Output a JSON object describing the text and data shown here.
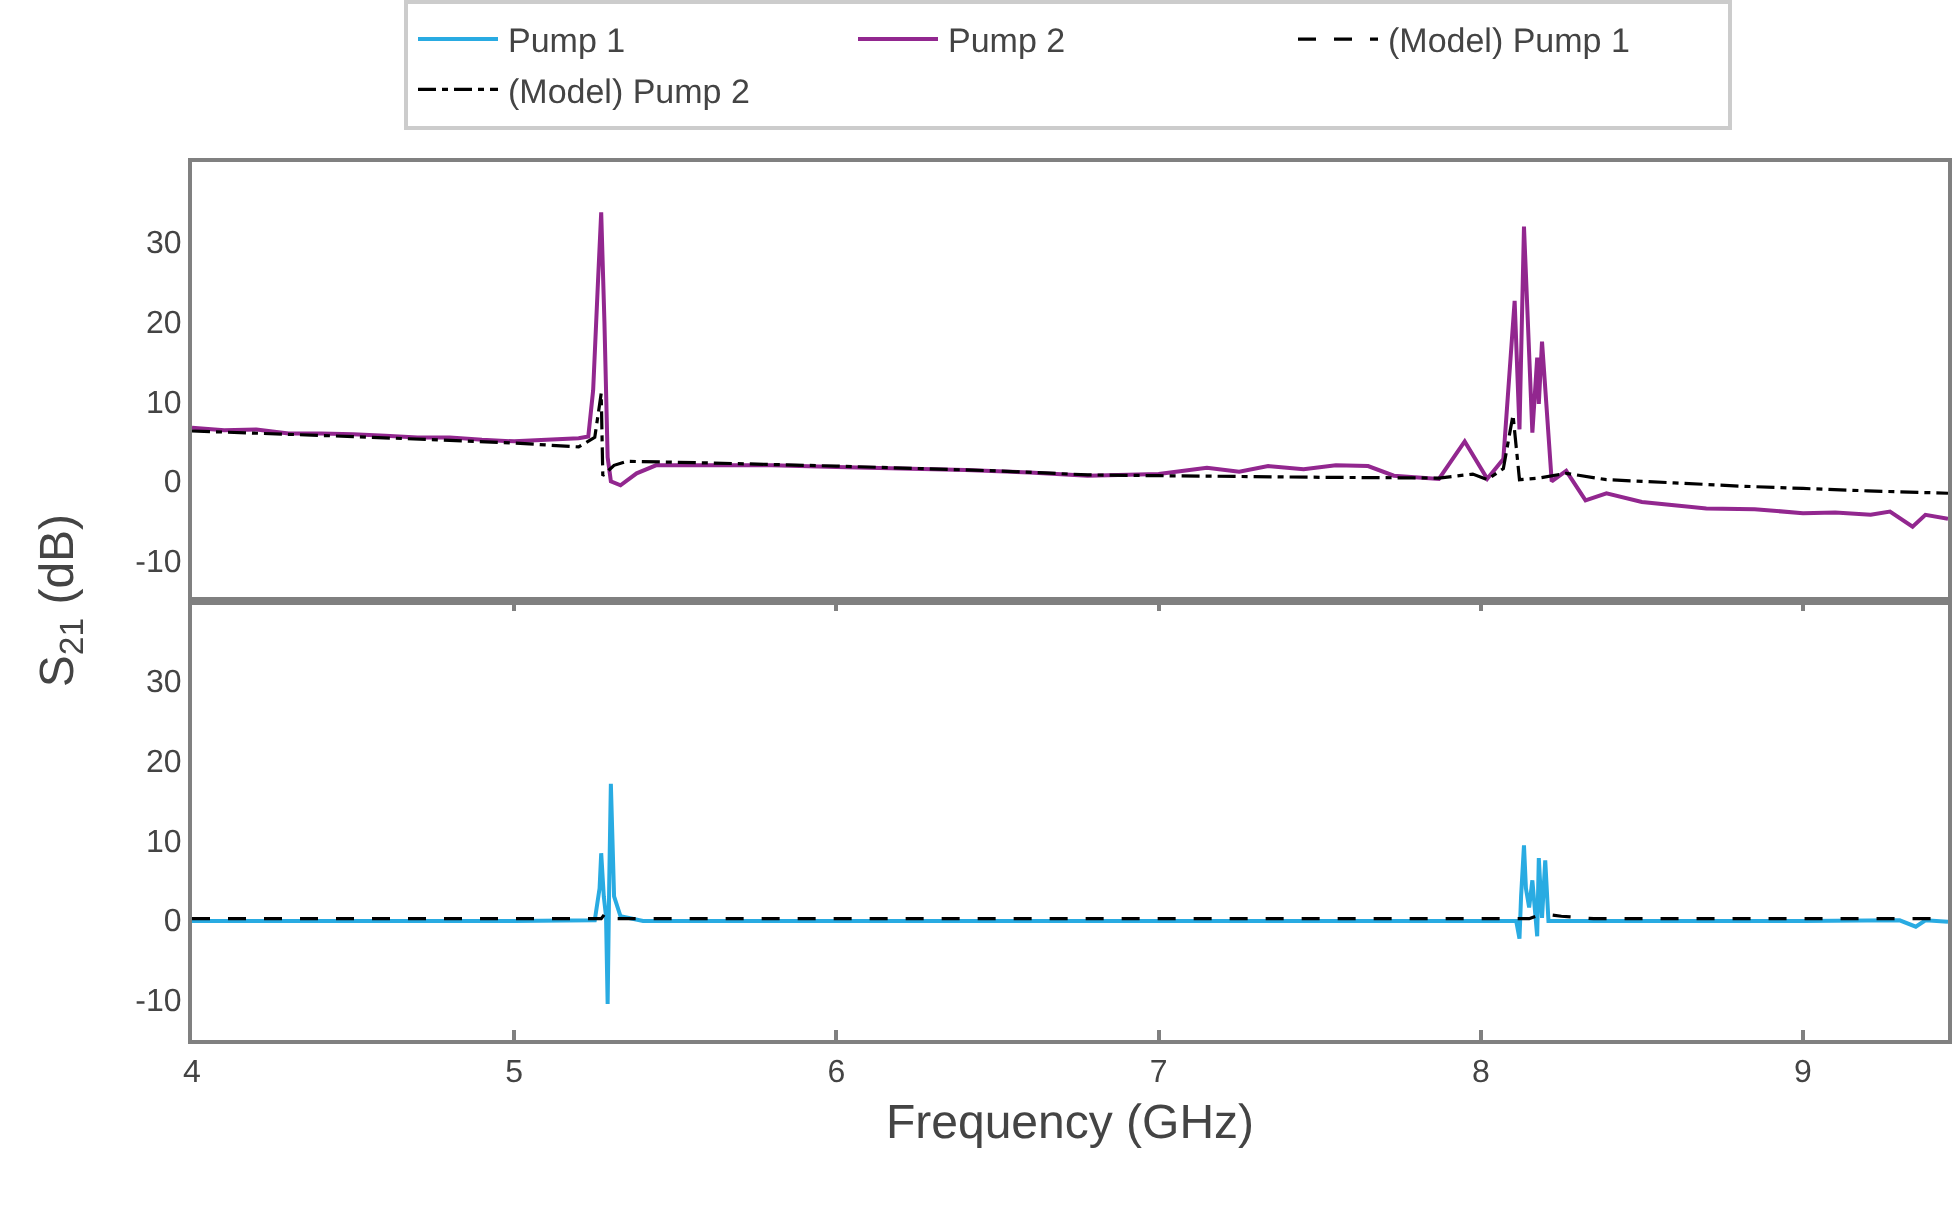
{
  "chart_data": [
    {
      "type": "line",
      "ylabel": "S$_{21}$ (dB)",
      "legend": "top",
      "tick_labels": "y",
      "marker": "none",
      "xlim": [
        4,
        9.45
      ],
      "xticks": [
        4,
        5,
        6,
        7,
        8,
        9
      ],
      "ylim": [
        -15,
        40
      ],
      "yticks": [
        -10,
        0,
        10,
        20,
        30
      ],
      "series": [
        {
          "name": "Pump 2",
          "color": "#92278f",
          "line_style": "solid",
          "x": [
            4.0,
            4.1,
            4.2,
            4.3,
            4.4,
            4.5,
            4.6,
            4.7,
            4.8,
            4.9,
            5.0,
            5.1,
            5.2,
            5.23,
            5.245,
            5.26,
            5.27,
            5.28,
            5.29,
            5.3,
            5.33,
            5.38,
            5.44,
            5.6,
            5.8,
            6.0,
            6.2,
            6.4,
            6.6,
            6.78,
            7.0,
            7.15,
            7.25,
            7.34,
            7.45,
            7.55,
            7.65,
            7.73,
            7.87,
            7.95,
            8.02,
            8.07,
            8.105,
            8.12,
            8.134,
            8.16,
            8.175,
            8.18,
            8.19,
            8.22,
            8.265,
            8.325,
            8.39,
            8.5,
            8.6,
            8.7,
            8.85,
            9.0,
            9.1,
            9.21,
            9.27,
            9.34,
            9.38,
            9.45
          ],
          "values": [
            6.7,
            6.4,
            6.5,
            6.0,
            6.0,
            5.9,
            5.7,
            5.5,
            5.5,
            5.2,
            5.0,
            5.2,
            5.4,
            5.6,
            11.4,
            25,
            33.7,
            20,
            3,
            0,
            -0.5,
            1,
            2,
            2,
            2,
            1.8,
            1.6,
            1.4,
            1.1,
            0.7,
            0.9,
            1.7,
            1.2,
            1.9,
            1.5,
            2.0,
            1.9,
            0.7,
            0.3,
            5.0,
            0.3,
            2.8,
            22.6,
            6.5,
            31.9,
            6.1,
            15.5,
            9.7,
            17.5,
            0,
            1.3,
            -2.4,
            -1.5,
            -2.6,
            -3.0,
            -3.4,
            -3.5,
            -4.0,
            -3.9,
            -4.2,
            -3.8,
            -5.7,
            -4.2,
            -4.7
          ]
        },
        {
          "name": "(Model) Pump 2",
          "color": "#000000",
          "line_style": "dashdot",
          "x": [
            4.0,
            4.5,
            5.0,
            5.2,
            5.25,
            5.27,
            5.275,
            5.31,
            5.35,
            5.6,
            6.0,
            6.5,
            6.78,
            7.0,
            7.5,
            7.87,
            7.975,
            8.02,
            8.07,
            8.1,
            8.12,
            8.18,
            8.265,
            8.39,
            8.6,
            8.8,
            9.0,
            9.2,
            9.45
          ],
          "values": [
            6.3,
            5.6,
            4.8,
            4.3,
            5.5,
            11,
            0.7,
            2,
            2.5,
            2.3,
            1.9,
            1.3,
            0.8,
            0.7,
            0.5,
            0.4,
            0.9,
            0.2,
            1.6,
            8.3,
            0.2,
            0.4,
            1.0,
            0.2,
            -0.2,
            -0.6,
            -0.9,
            -1.2,
            -1.5
          ]
        }
      ]
    },
    {
      "type": "line",
      "xlabel": "Frequency (GHz)",
      "legend": "top",
      "marker": "none",
      "xlim": [
        4,
        9.45
      ],
      "xticks": [
        4,
        5,
        6,
        7,
        8,
        9
      ],
      "ylim": [
        -15,
        40
      ],
      "yticks": [
        -10,
        0,
        10,
        20,
        30
      ],
      "series": [
        {
          "name": "Pump 1",
          "color": "#29abe2",
          "line_style": "solid",
          "x": [
            4.0,
            4.5,
            5.0,
            5.25,
            5.265,
            5.27,
            5.278,
            5.285,
            5.29,
            5.295,
            5.3,
            5.31,
            5.33,
            5.4,
            6.0,
            7.0,
            8.0,
            8.11,
            8.12,
            8.125,
            8.134,
            8.14,
            8.15,
            8.16,
            8.175,
            8.18,
            8.19,
            8.2,
            8.21,
            8.3,
            9.0,
            9.3,
            9.35,
            9.38,
            9.45
          ],
          "values": [
            -0.1,
            -0.1,
            -0.1,
            0,
            4,
            8.4,
            3,
            0.5,
            -10.5,
            5,
            17.1,
            3,
            0.5,
            -0.1,
            -0.1,
            -0.1,
            -0.1,
            -0.1,
            -2.3,
            3,
            9.4,
            4,
            1.6,
            5,
            -2.0,
            7.8,
            0.3,
            7.5,
            -0.1,
            -0.1,
            -0.1,
            0,
            -0.8,
            0,
            -0.2
          ]
        },
        {
          "name": "(Model) Pump 1",
          "color": "#000000",
          "line_style": "dashed",
          "x": [
            4.0,
            5.0,
            5.27,
            5.285,
            5.3,
            6.0,
            7.0,
            8.0,
            8.15,
            8.19,
            8.25,
            8.35,
            9.0,
            9.45
          ],
          "values": [
            0.2,
            0.2,
            0.2,
            1.0,
            0.2,
            0.2,
            0.2,
            0.2,
            0.2,
            0.8,
            0.5,
            0.2,
            0.2,
            0.2
          ]
        }
      ]
    }
  ]
}
